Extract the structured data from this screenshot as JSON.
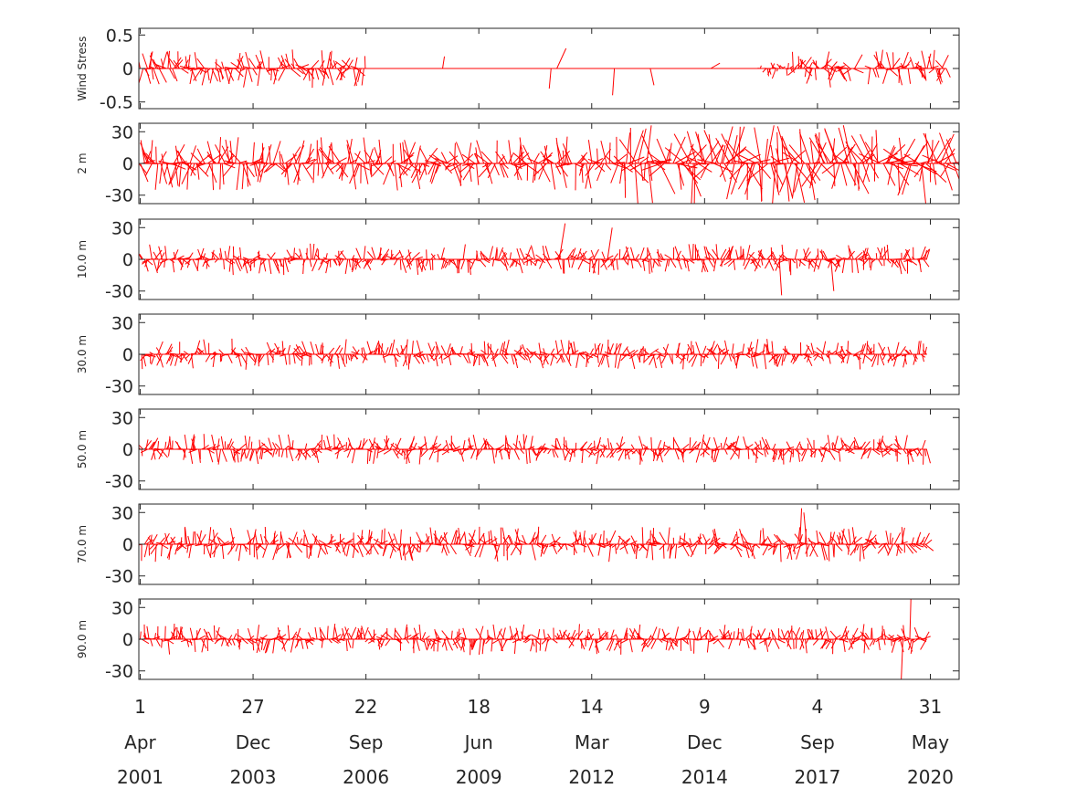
{
  "chart_data": {
    "type": "stick-vector",
    "description_units": "vector time series; x is date, y is component value",
    "color": "#ff0000",
    "x_range": [
      "2001-03-20",
      "2021-02-10"
    ],
    "x_ticks": [
      {
        "date": "2001-04-01",
        "day": "1",
        "month": "Apr",
        "year": "2001"
      },
      {
        "date": "2003-12-27",
        "day": "27",
        "month": "Dec",
        "year": "2003"
      },
      {
        "date": "2006-09-22",
        "day": "22",
        "month": "Sep",
        "year": "2006"
      },
      {
        "date": "2009-06-18",
        "day": "18",
        "month": "Jun",
        "year": "2009"
      },
      {
        "date": "2012-03-14",
        "day": "14",
        "month": "Mar",
        "year": "2012"
      },
      {
        "date": "2014-12-09",
        "day": "9",
        "month": "Dec",
        "year": "2014"
      },
      {
        "date": "2017-09-04",
        "day": "4",
        "month": "Sep",
        "year": "2017"
      },
      {
        "date": "2020-05-31",
        "day": "31",
        "month": "May",
        "year": "2020"
      }
    ],
    "panels": [
      {
        "label": "Wind Stress",
        "ylim": [
          -0.6,
          0.6
        ],
        "yticks": [
          0.5,
          0,
          -0.5
        ],
        "ytick_labels": [
          "0.5",
          "0",
          "-0.5"
        ],
        "data_start": "2001-04-01",
        "data_end": "2020-10-20",
        "segments": [
          {
            "start": "2001-04-01",
            "end": "2006-09-22",
            "amplitude": 0.3
          },
          {
            "start": "2006-09-22",
            "end": "2016-04-15",
            "amplitude": 0.0
          },
          {
            "start": "2016-04-15",
            "end": "2017-02-01",
            "amplitude": 0.12
          },
          {
            "start": "2017-02-01",
            "end": "2018-08-01",
            "amplitude": 0.3
          },
          {
            "start": "2018-08-01",
            "end": "2018-12-15",
            "amplitude": 0.0
          },
          {
            "start": "2018-12-15",
            "end": "2020-10-20",
            "amplitude": 0.3
          }
        ],
        "spikes": [
          {
            "date": "2008-08-01",
            "u": 0.05,
            "v": 0.18
          },
          {
            "date": "2011-05-10",
            "u": 0.25,
            "v": 0.3
          },
          {
            "date": "2011-03-20",
            "u": -0.05,
            "v": -0.3
          },
          {
            "date": "2012-10-01",
            "u": -0.05,
            "v": -0.4
          },
          {
            "date": "2013-08-15",
            "u": 0.1,
            "v": -0.25
          },
          {
            "date": "2015-02-01",
            "u": 0.25,
            "v": 0.08
          },
          {
            "date": "2016-09-01",
            "u": -0.1,
            "v": -0.15
          }
        ]
      },
      {
        "label": "2 m",
        "ylim": [
          -38,
          38
        ],
        "yticks": [
          30,
          0,
          -30
        ],
        "ytick_labels": [
          "30",
          "0",
          "-30"
        ],
        "data_start": "2001-03-20",
        "data_end": "2021-02-10",
        "segments": [
          {
            "start": "2001-03-20",
            "end": "2013-01-01",
            "amplitude": 26
          },
          {
            "start": "2013-01-01",
            "end": "2021-02-10",
            "amplitude": 40
          }
        ]
      },
      {
        "label": "10.0 m",
        "ylim": [
          -38,
          38
        ],
        "yticks": [
          30,
          0,
          -30
        ],
        "ytick_labels": [
          "30",
          "0",
          "-30"
        ],
        "data_start": "2001-04-01",
        "data_end": "2020-05-01",
        "segments": [
          {
            "start": "2001-04-01",
            "end": "2020-05-01",
            "amplitude": 15
          }
        ],
        "spikes": [
          {
            "date": "2011-06-01",
            "u": 10,
            "v": 34
          },
          {
            "date": "2012-08-01",
            "u": 8,
            "v": 30
          },
          {
            "date": "2016-10-01",
            "u": 4,
            "v": -34
          },
          {
            "date": "2018-01-01",
            "u": 5,
            "v": -30
          }
        ]
      },
      {
        "label": "30.0 m",
        "ylim": [
          -38,
          38
        ],
        "yticks": [
          30,
          0,
          -30
        ],
        "ytick_labels": [
          "30",
          "0",
          "-30"
        ],
        "data_start": "2001-04-01",
        "data_end": "2020-05-01",
        "segments": [
          {
            "start": "2001-04-01",
            "end": "2020-05-01",
            "amplitude": 15
          }
        ]
      },
      {
        "label": "50.0 m",
        "ylim": [
          -38,
          38
        ],
        "yticks": [
          30,
          0,
          -30
        ],
        "ytick_labels": [
          "30",
          "0",
          "-30"
        ],
        "data_start": "2001-04-01",
        "data_end": "2020-05-01",
        "segments": [
          {
            "start": "2001-04-01",
            "end": "2020-05-01",
            "amplitude": 15
          }
        ]
      },
      {
        "label": "70.0 m",
        "ylim": [
          -38,
          38
        ],
        "yticks": [
          30,
          0,
          -30
        ],
        "ytick_labels": [
          "30",
          "0",
          "-30"
        ],
        "data_start": "2001-04-01",
        "data_end": "2020-05-01",
        "segments": [
          {
            "start": "2001-04-01",
            "end": "2020-05-01",
            "amplitude": 17
          }
        ],
        "spikes": [
          {
            "date": "2017-04-01",
            "u": 3,
            "v": 34
          },
          {
            "date": "2017-06-01",
            "u": -5,
            "v": 30
          }
        ]
      },
      {
        "label": "90.0 m",
        "ylim": [
          -38,
          38
        ],
        "yticks": [
          30,
          0,
          -30
        ],
        "ytick_labels": [
          "30",
          "0",
          "-30"
        ],
        "data_start": "2001-04-01",
        "data_end": "2020-05-01",
        "segments": [
          {
            "start": "2001-04-01",
            "end": "2020-05-01",
            "amplitude": 15
          }
        ],
        "spikes": [
          {
            "date": "2019-12-01",
            "u": 2,
            "v": 40
          },
          {
            "date": "2019-10-01",
            "u": -3,
            "v": -40
          }
        ]
      }
    ]
  }
}
